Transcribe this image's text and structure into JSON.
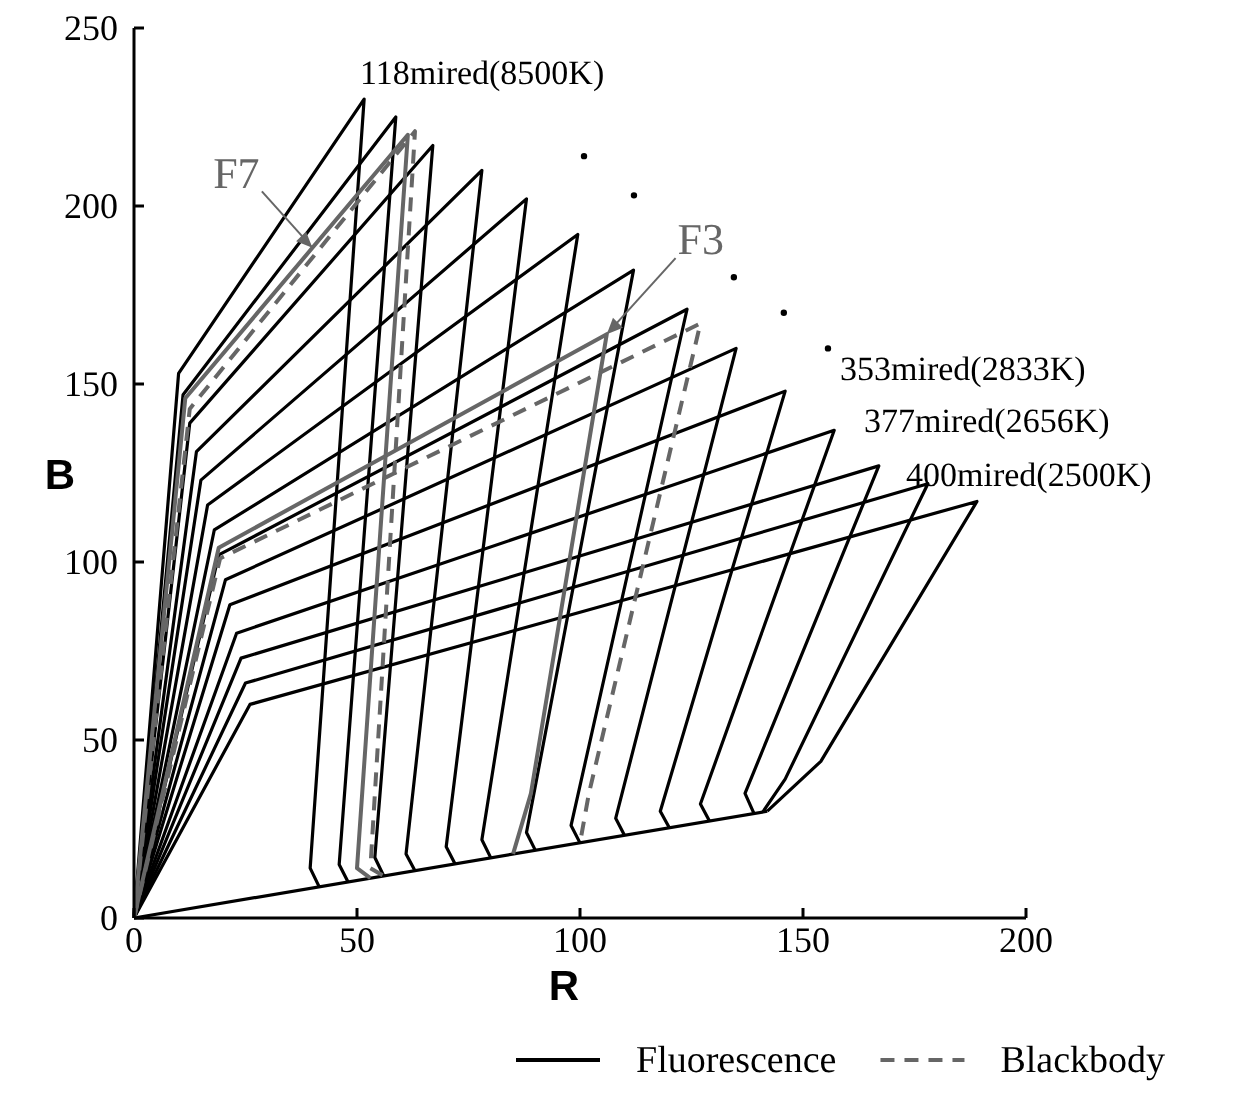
{
  "chart_data": {
    "type": "line",
    "xlabel": "R",
    "ylabel": "B",
    "xlim": [
      0,
      200
    ],
    "ylim": [
      0,
      250
    ],
    "xticks": [
      0,
      50,
      100,
      150,
      200
    ],
    "yticks": [
      0,
      50,
      100,
      150,
      200,
      250
    ],
    "grid": false,
    "legend": "bottom",
    "series": [
      {
        "name": "Fluorescence",
        "type": "line",
        "line_style": "solid",
        "color": "#000000",
        "x": [
          0,
          10,
          51.6,
          39.5,
          41.5
        ],
        "values": [
          0,
          153,
          230,
          14,
          8.8
        ]
      },
      {
        "type": "line",
        "line_style": "solid",
        "color": "#000000",
        "x": [
          0,
          11,
          58.7,
          46,
          48
        ],
        "values": [
          0,
          147,
          225,
          15,
          10.1
        ]
      },
      {
        "type": "line",
        "line_style": "solid",
        "color": "#000000",
        "x": [
          0,
          12.5,
          67,
          54,
          56
        ],
        "values": [
          0,
          139,
          217,
          17,
          11.8
        ]
      },
      {
        "type": "line",
        "line_style": "solid",
        "color": "#000000",
        "x": [
          0,
          14,
          78,
          61,
          63
        ],
        "values": [
          0,
          131,
          210,
          18,
          13.3
        ]
      },
      {
        "type": "line",
        "line_style": "solid",
        "color": "#000000",
        "x": [
          0,
          15,
          88,
          70,
          72
        ],
        "values": [
          0,
          123,
          202,
          20,
          15.2
        ]
      },
      {
        "type": "line",
        "line_style": "solid",
        "color": "#000000",
        "x": [
          0,
          16.5,
          99.5,
          78,
          80
        ],
        "values": [
          0,
          116,
          192,
          22,
          16.9
        ]
      },
      {
        "type": "line",
        "line_style": "solid",
        "color": "#000000",
        "x": [
          0,
          18,
          112,
          88,
          90
        ],
        "values": [
          0,
          109,
          182,
          24,
          19
        ]
      },
      {
        "type": "line",
        "line_style": "solid",
        "color": "#000000",
        "x": [
          0,
          19,
          124,
          98,
          100
        ],
        "values": [
          0,
          102,
          171,
          26,
          21.1
        ]
      },
      {
        "type": "line",
        "line_style": "solid",
        "color": "#000000",
        "x": [
          0,
          20.5,
          135,
          108,
          110
        ],
        "values": [
          0,
          95,
          160,
          28,
          23.2
        ]
      },
      {
        "type": "line",
        "line_style": "solid",
        "color": "#000000",
        "x": [
          0,
          21.5,
          146,
          118,
          120
        ],
        "values": [
          0,
          88,
          148,
          30,
          25.4
        ]
      },
      {
        "type": "line",
        "line_style": "solid",
        "color": "#000000",
        "x": [
          0,
          23,
          157,
          127,
          129
        ],
        "values": [
          0,
          80,
          137,
          32,
          27.3
        ]
      },
      {
        "type": "line",
        "line_style": "solid",
        "color": "#000000",
        "x": [
          0,
          24,
          167,
          137,
          139
        ],
        "values": [
          0,
          73,
          127,
          35,
          29.4
        ]
      },
      {
        "type": "line",
        "line_style": "solid",
        "color": "#000000",
        "x": [
          0,
          25,
          178,
          146,
          141
        ],
        "values": [
          0,
          66,
          122,
          39,
          29.8
        ]
      },
      {
        "type": "line",
        "line_style": "solid",
        "color": "#000000",
        "x": [
          0,
          26,
          189,
          154,
          142
        ],
        "values": [
          0,
          60,
          117,
          44,
          30
        ]
      },
      {
        "type": "line",
        "line_style": "solid",
        "color": "#000000",
        "x": [
          0,
          142
        ],
        "values": [
          0,
          30
        ]
      },
      {
        "type": "line",
        "line_style": "solid",
        "color": "#666666",
        "x": [
          0,
          11.5,
          61.4,
          50,
          53
        ],
        "values": [
          0,
          146,
          220,
          14,
          11.2
        ]
      },
      {
        "type": "line",
        "line_style": "solid",
        "color": "#666666",
        "x": [
          0,
          19,
          106,
          89,
          85
        ],
        "values": [
          0,
          104,
          164,
          35,
          18
        ]
      },
      {
        "name": "Blackbody",
        "type": "line",
        "line_style": "dashed",
        "color": "#666666",
        "x": [
          0,
          12.5,
          63,
          53,
          56
        ],
        "values": [
          0,
          143,
          221,
          14,
          11.8
        ]
      },
      {
        "type": "line",
        "line_style": "dashed",
        "color": "#666666",
        "x": [
          0,
          19.3,
          127,
          102,
          100
        ],
        "values": [
          0,
          101,
          167,
          35,
          21.1
        ]
      },
      {
        "type": "scatter",
        "marker": "circle",
        "color": "#000000",
        "x": [
          100.9,
          112.1,
          134.5,
          145.7,
          155.6
        ],
        "values": [
          214,
          203,
          180,
          170,
          160
        ]
      }
    ],
    "annotations": [
      "118mired(8500K)",
      "353mired(2833K)",
      "377mired(2656K)",
      "400mired(2500K)",
      {
        "text": "F7",
        "x": 40,
        "y": 188.3
      },
      {
        "text": "F3",
        "x": 106,
        "y": 164
      }
    ]
  }
}
